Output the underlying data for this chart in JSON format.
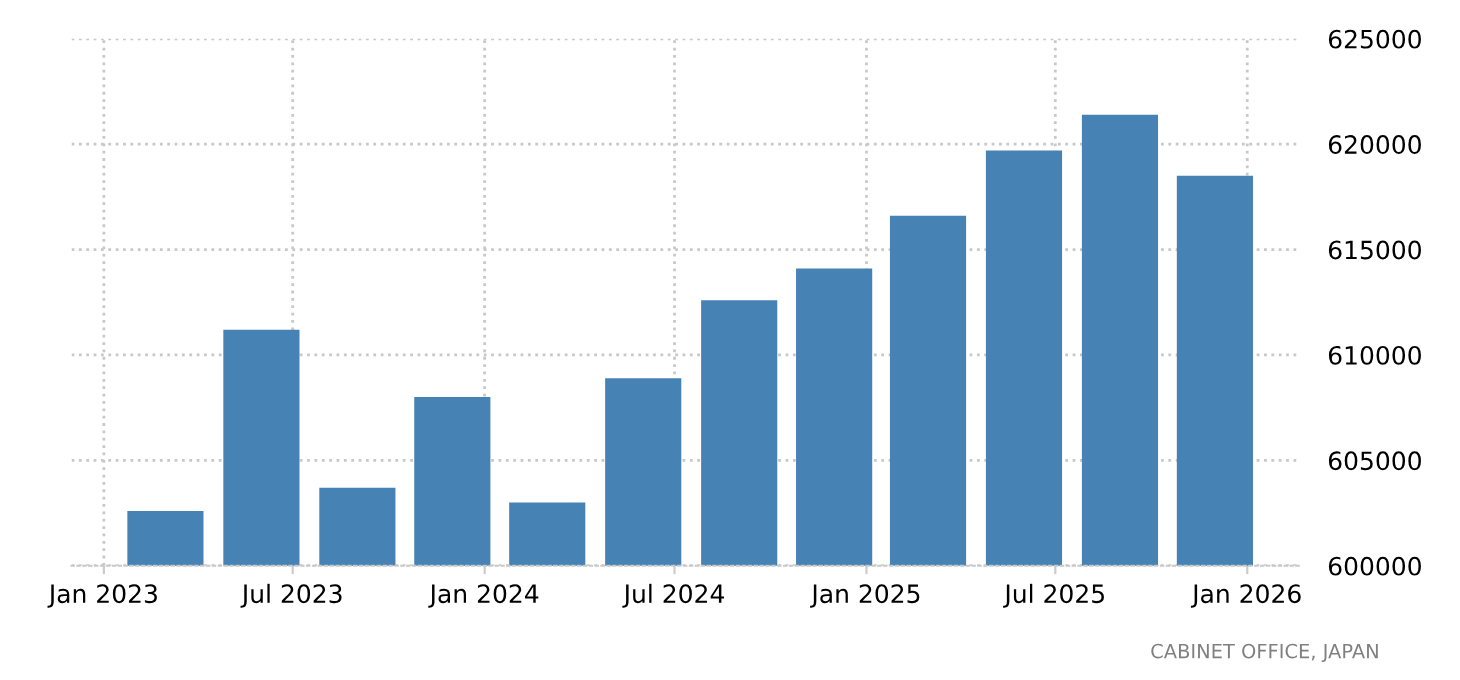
{
  "chart_data": {
    "type": "bar",
    "x": [
      "2023-03",
      "2023-06",
      "2023-09",
      "2023-12",
      "2024-03",
      "2024-06",
      "2024-09",
      "2024-12",
      "2025-03",
      "2025-06",
      "2025-09",
      "2025-12"
    ],
    "values": [
      602600,
      611200,
      603700,
      608000,
      603000,
      608900,
      612600,
      614100,
      616600,
      619700,
      621400,
      618500
    ],
    "color": "#4682b4",
    "xlim": [
      "2022-12-01",
      "2026-02-20"
    ],
    "xticks": [
      {
        "value": "2023-01-01",
        "label": "Jan 2023"
      },
      {
        "value": "2023-07-01",
        "label": "Jul 2023"
      },
      {
        "value": "2024-01-01",
        "label": "Jan 2024"
      },
      {
        "value": "2024-07-01",
        "label": "Jul 2024"
      },
      {
        "value": "2025-01-01",
        "label": "Jan 2025"
      },
      {
        "value": "2025-07-01",
        "label": "Jul 2025"
      },
      {
        "value": "2026-01-01",
        "label": "Jan 2026"
      }
    ],
    "ylim": [
      600000,
      625000
    ],
    "yticks": [
      600000,
      605000,
      610000,
      615000,
      620000,
      625000
    ],
    "grid": true,
    "annotations": [
      "CABINET OFFICE, JAPAN"
    ]
  }
}
